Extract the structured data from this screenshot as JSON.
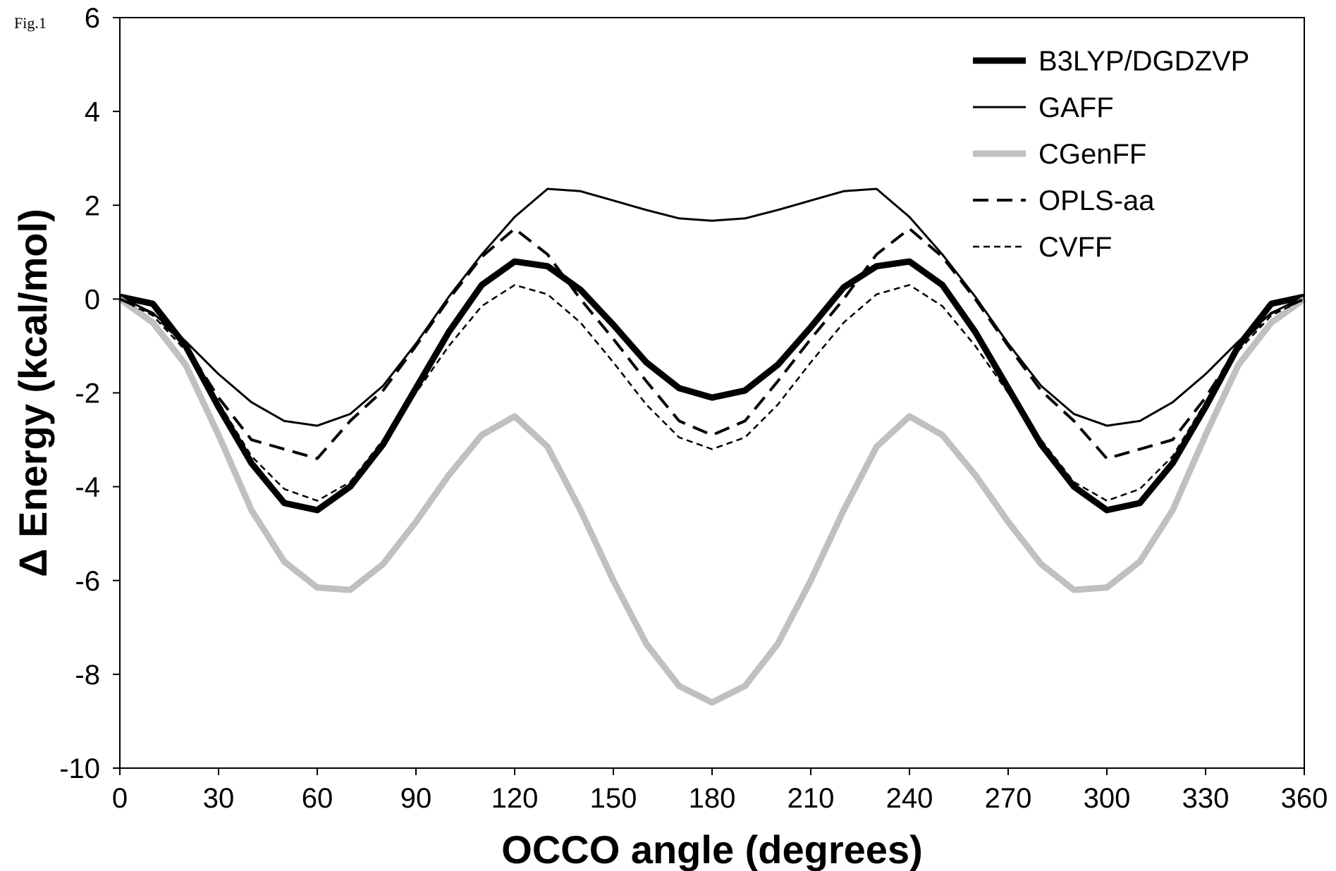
{
  "figure_label": "Fig.1",
  "chart_data": {
    "type": "line",
    "xlabel": "OCCO angle (degrees)",
    "ylabel": "Δ Energy (kcal/mol)",
    "xlim": [
      0,
      360
    ],
    "ylim": [
      -10,
      6
    ],
    "xticks": [
      0,
      30,
      60,
      90,
      120,
      150,
      180,
      210,
      240,
      270,
      300,
      330,
      360
    ],
    "yticks": [
      -10,
      -8,
      -6,
      -4,
      -2,
      0,
      2,
      4,
      6
    ],
    "xtick_labels": [
      "0",
      "30",
      "60",
      "90",
      "120",
      "150",
      "180",
      "210",
      "240",
      "270",
      "300",
      "330",
      "360"
    ],
    "ytick_labels": [
      "-10",
      "-8",
      "-6",
      "-4",
      "-2",
      "0",
      "2",
      "4",
      "6"
    ],
    "grid": false,
    "legend_position": "top-right",
    "x": [
      0,
      10,
      20,
      30,
      40,
      50,
      60,
      70,
      80,
      90,
      100,
      110,
      120,
      130,
      140,
      150,
      160,
      170,
      180,
      190,
      200,
      210,
      220,
      230,
      240,
      250,
      260,
      270,
      280,
      290,
      300,
      310,
      320,
      330,
      340,
      350,
      360
    ],
    "series": [
      {
        "name": "B3LYP/DGDZVP",
        "color": "#000000",
        "style": "thick-solid",
        "values": [
          0.05,
          -0.1,
          -1.0,
          -2.3,
          -3.5,
          -4.35,
          -4.5,
          -4.0,
          -3.1,
          -1.9,
          -0.7,
          0.3,
          0.8,
          0.7,
          0.2,
          -0.55,
          -1.35,
          -1.9,
          -2.1,
          -1.95,
          -1.4,
          -0.6,
          0.25,
          0.7,
          0.8,
          0.3,
          -0.7,
          -1.9,
          -3.1,
          -4.0,
          -4.5,
          -4.35,
          -3.5,
          -2.3,
          -1.0,
          -0.1,
          0.05
        ]
      },
      {
        "name": "GAFF",
        "color": "#000000",
        "style": "solid",
        "values": [
          0.05,
          -0.3,
          -0.9,
          -1.6,
          -2.2,
          -2.6,
          -2.7,
          -2.45,
          -1.85,
          -0.95,
          0.05,
          0.95,
          1.75,
          2.35,
          2.3,
          2.1,
          1.9,
          1.72,
          1.67,
          1.72,
          1.9,
          2.1,
          2.3,
          2.35,
          1.75,
          0.95,
          0.05,
          -0.95,
          -1.85,
          -2.45,
          -2.7,
          -2.6,
          -2.2,
          -1.6,
          -0.9,
          -0.3,
          0.05
        ]
      },
      {
        "name": "CGenFF",
        "color": "#c0c0c0",
        "style": "thick-solid",
        "values": [
          0.0,
          -0.5,
          -1.4,
          -2.9,
          -4.5,
          -5.6,
          -6.15,
          -6.2,
          -5.65,
          -4.75,
          -3.75,
          -2.9,
          -2.5,
          -3.15,
          -4.5,
          -6.0,
          -7.35,
          -8.25,
          -8.6,
          -8.25,
          -7.35,
          -6.0,
          -4.5,
          -3.15,
          -2.5,
          -2.9,
          -3.75,
          -4.75,
          -5.65,
          -6.2,
          -6.15,
          -5.6,
          -4.5,
          -2.9,
          -1.4,
          -0.5,
          0.0
        ]
      },
      {
        "name": "OPLS-aa",
        "color": "#000000",
        "style": "dashed",
        "values": [
          0.0,
          -0.3,
          -1.0,
          -2.1,
          -3.0,
          -3.2,
          -3.4,
          -2.6,
          -1.95,
          -1.0,
          0.0,
          0.9,
          1.5,
          0.95,
          0.0,
          -0.85,
          -1.75,
          -2.6,
          -2.9,
          -2.6,
          -1.75,
          -0.85,
          0.0,
          0.95,
          1.5,
          0.9,
          0.0,
          -1.0,
          -1.95,
          -2.6,
          -3.4,
          -3.2,
          -3.0,
          -2.1,
          -1.0,
          -0.3,
          0.0
        ]
      },
      {
        "name": "CVFF",
        "color": "#000000",
        "style": "dotted",
        "values": [
          0.0,
          -0.35,
          -1.1,
          -2.2,
          -3.35,
          -4.05,
          -4.3,
          -3.9,
          -3.0,
          -2.0,
          -1.0,
          -0.15,
          0.3,
          0.1,
          -0.5,
          -1.35,
          -2.25,
          -2.95,
          -3.2,
          -2.95,
          -2.25,
          -1.35,
          -0.5,
          0.1,
          0.3,
          -0.15,
          -1.0,
          -2.0,
          -3.0,
          -3.9,
          -4.3,
          -4.05,
          -3.35,
          -2.2,
          -1.1,
          -0.35,
          0.0
        ]
      }
    ]
  }
}
